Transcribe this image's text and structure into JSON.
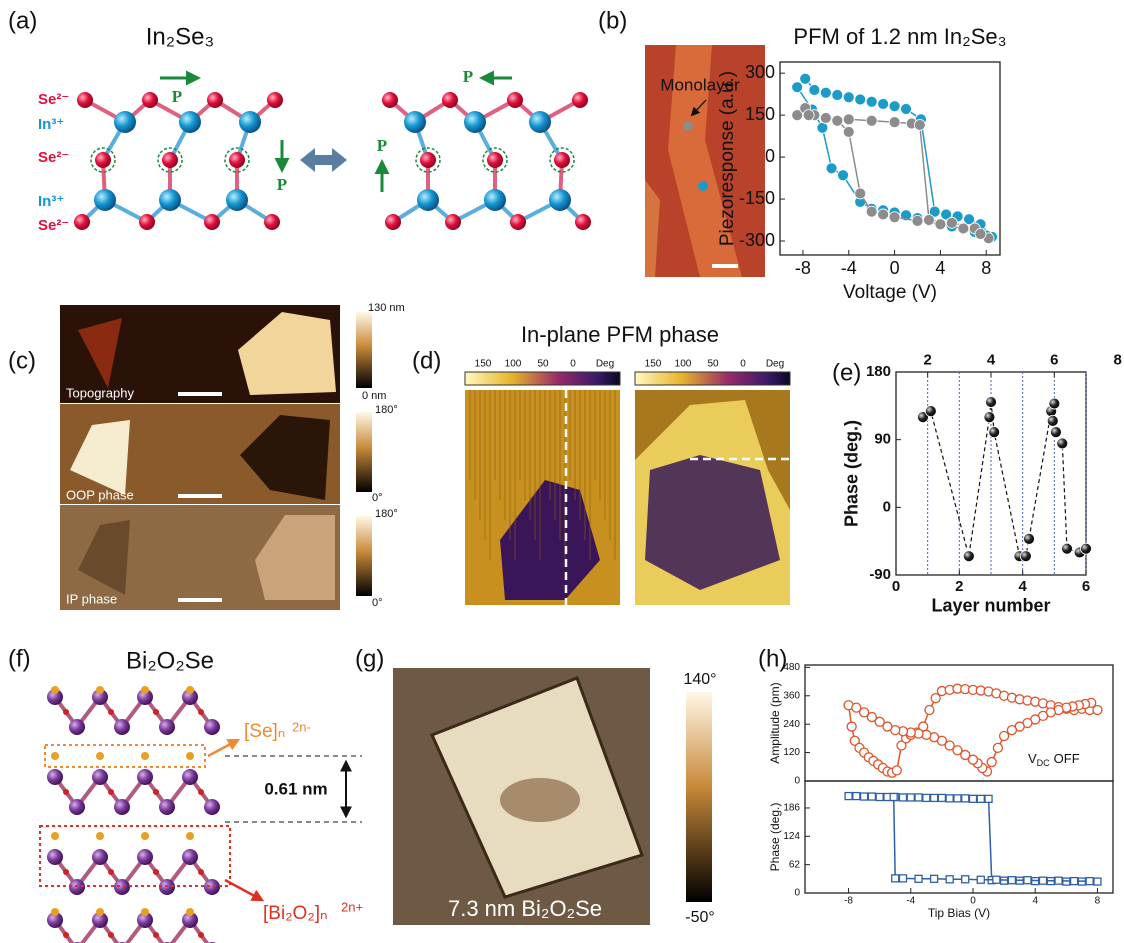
{
  "panels": {
    "a": {
      "label": "(a)",
      "title": "In₂Se₃",
      "ions": [
        "Se²⁻",
        "In³⁺",
        "Se²⁻",
        "In³⁺",
        "Se²⁻"
      ],
      "polarization": [
        "P",
        "P",
        "P",
        "P"
      ]
    },
    "b": {
      "label": "(b)",
      "image_label": "Monolayer"
    },
    "c": {
      "label": "(c)",
      "images": [
        {
          "caption": "Topography",
          "scale_max": "130 nm",
          "scale_min": "0 nm"
        },
        {
          "caption": "OOP phase",
          "scale_max": "180°",
          "scale_min": "0°"
        },
        {
          "caption": "IP phase",
          "scale_max": "180°",
          "scale_min": "0°"
        }
      ]
    },
    "d": {
      "label": "(d)",
      "title": "In-plane PFM phase",
      "scale": [
        150,
        100,
        50,
        0
      ],
      "unit": "Deg"
    },
    "e": {
      "label": "(e)"
    },
    "f": {
      "label": "(f)",
      "title": "Bi₂O₂Se",
      "se_layer": "[Se]ₙ",
      "se_charge": "2n-",
      "spacing": "0.61 nm",
      "bi_layer": "[Bi₂O₂]ₙ",
      "bi_charge": "2n+"
    },
    "g": {
      "label": "(g)",
      "caption": "7.3 nm Bi₂O₂Se",
      "scale_max": "140°",
      "scale_min": "-50°"
    },
    "h": {
      "label": "(h)",
      "note": [
        "V",
        "DC",
        "OFF"
      ]
    }
  },
  "chart_data": [
    {
      "type": "line",
      "title": "PFM of 1.2 nm In₂Se₃",
      "xlabel": "Voltage (V)",
      "ylabel": "Piezoresponse (a.u.)",
      "xlim": [
        -10,
        9.2
      ],
      "ylim": [
        -350,
        340
      ],
      "xticks": [
        -8,
        -4,
        0,
        4,
        8
      ],
      "yticks": [
        300,
        150,
        0,
        -150,
        -300
      ],
      "marker": "ball",
      "series": [
        {
          "color": "#1a9bc8",
          "x": [
            -8.5,
            -7.8,
            -7,
            -6,
            -5,
            -4,
            -3,
            -2,
            -1,
            0,
            1,
            2.3,
            3.5,
            4.5,
            5.5,
            6.5,
            7.5,
            8.5,
            8,
            7,
            6,
            5,
            4,
            3,
            2,
            1,
            0,
            -1,
            -2,
            -3,
            -4.5,
            -5.5,
            -6.3,
            -7.2,
            -8.5
          ],
          "values": [
            250,
            280,
            240,
            230,
            222,
            214,
            206,
            198,
            190,
            182,
            172,
            135,
            -195,
            -205,
            -212,
            -222,
            -240,
            -285,
            -280,
            -268,
            -258,
            -248,
            -238,
            -228,
            -218,
            -208,
            -198,
            -190,
            -185,
            -160,
            -65,
            -40,
            105,
            170,
            250
          ]
        },
        {
          "color": "#8c8c8c",
          "x": [
            -8.5,
            -7.8,
            -7,
            -6,
            -4,
            -2,
            0,
            1.5,
            2.2,
            3,
            5,
            7,
            8.2,
            7.5,
            6,
            4,
            2,
            0,
            -1,
            -2,
            -3,
            -4,
            -5,
            -6,
            -7.5
          ],
          "values": [
            150,
            175,
            150,
            140,
            135,
            130,
            125,
            120,
            115,
            -225,
            -235,
            -255,
            -290,
            -275,
            -255,
            -240,
            -228,
            -215,
            -205,
            -195,
            -130,
            90,
            130,
            140,
            150
          ]
        }
      ]
    },
    {
      "type": "line",
      "xlabel": "Layer number",
      "ylabel": "Phase (deg.)",
      "xlim": [
        0,
        6
      ],
      "ylim": [
        -90,
        180
      ],
      "xticks": [
        0,
        2,
        4,
        6
      ],
      "yticks": [
        -90,
        0,
        90,
        180
      ],
      "x2ticks": [
        {
          "value": 1,
          "label": "2"
        },
        {
          "value": 3,
          "label": "4"
        },
        {
          "value": 5,
          "label": "6"
        },
        {
          "value": 7,
          "label": "8"
        }
      ],
      "xgrid": [
        1,
        2,
        3,
        4,
        5,
        6
      ],
      "marker": "ball",
      "dash": true,
      "series": [
        {
          "color": "#111111",
          "x": [
            0.85,
            1.1,
            2.3,
            2.95,
            3,
            3.1,
            3.9,
            4.1,
            4.2,
            4.9,
            5,
            4.95,
            5.05,
            5.25,
            5.4,
            5.8,
            6
          ],
          "values": [
            120,
            128,
            -65,
            120,
            140,
            100,
            -65,
            -65,
            -42,
            128,
            138,
            115,
            100,
            85,
            -55,
            -60,
            -55
          ]
        }
      ]
    },
    {
      "type": "line",
      "ylabel": "Amplitude (pm)",
      "xlim": [
        -10.8,
        9
      ],
      "ylim": [
        0,
        490
      ],
      "yticks": [
        0,
        120,
        240,
        360,
        480
      ],
      "marker": "open-circle",
      "series": [
        {
          "color": "#e0522a",
          "x": [
            -8,
            -7.8,
            -7.6,
            -7.3,
            -7,
            -6.7,
            -6.4,
            -6.1,
            -5.8,
            -5.5,
            -5.2,
            -4.9,
            -4.6,
            -4.3,
            -4,
            -3.6,
            -3.2,
            -2.8,
            -2.4,
            -2,
            -1.5,
            -1,
            -0.5,
            0,
            0.5,
            1,
            1.5,
            2,
            2.5,
            3,
            3.5,
            4,
            4.5,
            5,
            5.5,
            6,
            6.5,
            7,
            7.5,
            8
          ],
          "values": [
            320,
            230,
            170,
            140,
            120,
            100,
            85,
            70,
            55,
            40,
            35,
            45,
            150,
            180,
            195,
            205,
            230,
            300,
            350,
            380,
            385,
            390,
            388,
            385,
            382,
            378,
            370,
            360,
            352,
            345,
            340,
            335,
            328,
            320,
            312,
            305,
            300,
            305,
            300,
            300
          ]
        },
        {
          "color": "#e0522a",
          "x": [
            7.6,
            7.2,
            6.8,
            6.4,
            6,
            5.5,
            5,
            4.5,
            4,
            3.5,
            3,
            2.5,
            2,
            1.6,
            1.2,
            0.9,
            0.6,
            0.3,
            0,
            -0.5,
            -1,
            -1.5,
            -2,
            -2.5,
            -3,
            -3.5,
            -4,
            -4.5,
            -5,
            -5.5,
            -6,
            -6.5,
            -7,
            -7.5
          ],
          "values": [
            330,
            325,
            320,
            315,
            310,
            300,
            290,
            275,
            260,
            245,
            230,
            215,
            190,
            140,
            80,
            40,
            55,
            75,
            90,
            110,
            130,
            150,
            170,
            185,
            195,
            200,
            205,
            210,
            215,
            230,
            250,
            270,
            290,
            310
          ]
        }
      ]
    },
    {
      "type": "line",
      "xlabel": "Tip Bias (V)",
      "ylabel": "Phase (deg.)",
      "xlim": [
        -10.8,
        9
      ],
      "ylim": [
        0,
        245
      ],
      "xticks": [
        -8,
        -4,
        0,
        4,
        8
      ],
      "yticks": [
        0,
        62,
        124,
        186
      ],
      "marker": "open-square",
      "series": [
        {
          "color": "#2f5fa8",
          "x": [
            -8,
            -7.5,
            -7,
            -6.5,
            -6,
            -5.5,
            -5,
            -4.5,
            -4,
            -3.5,
            -3,
            -2.5,
            -2,
            -1.5,
            -1,
            -0.5,
            0,
            0.5,
            1,
            1.2,
            2,
            3,
            4,
            5,
            6,
            7,
            8
          ],
          "values": [
            212,
            212,
            211,
            211,
            210,
            210,
            210,
            209,
            209,
            209,
            208,
            208,
            208,
            207,
            207,
            207,
            206,
            206,
            206,
            28,
            27,
            27,
            26,
            26,
            25,
            25,
            25
          ]
        },
        {
          "color": "#2f5fa8",
          "x": [
            7.5,
            6.5,
            5.5,
            4.5,
            3.5,
            2.5,
            1.5,
            0.5,
            -0.5,
            -1.5,
            -2.5,
            -3.5,
            -4.5,
            -5,
            -5.1
          ],
          "values": [
            26,
            26,
            27,
            27,
            28,
            28,
            29,
            29,
            30,
            30,
            31,
            31,
            32,
            32,
            210
          ]
        }
      ]
    }
  ]
}
